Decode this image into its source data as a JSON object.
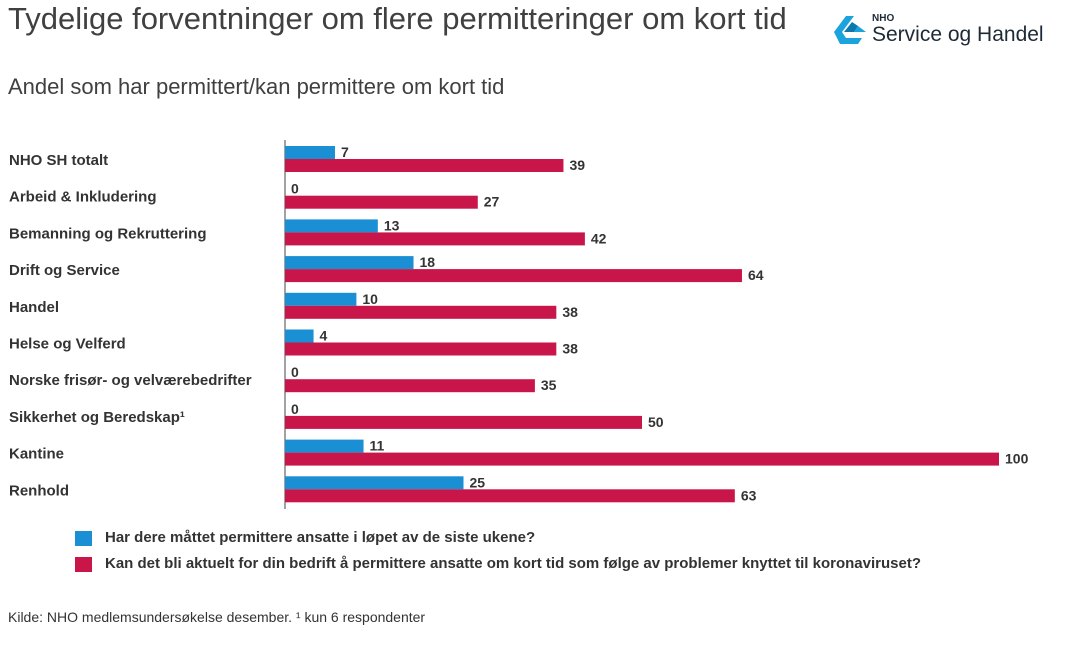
{
  "header": {
    "title": "Tydelige forventninger om flere permitteringer om kort tid",
    "subtitle": "Andel som har permittert/kan permittere om kort tid"
  },
  "logo": {
    "small_text": "NHO",
    "main_text": "Service og Handel",
    "color": "#1aa3dc"
  },
  "chart_data": {
    "type": "bar",
    "orientation": "horizontal",
    "categories": [
      "NHO SH totalt",
      "Arbeid & Inkludering",
      "Bemanning og Rekruttering",
      "Drift og Service",
      "Handel",
      "Helse og Velferd",
      "Norske frisør- og velværebedrifter",
      "Sikkerhet og Beredskap¹",
      "Kantine",
      "Renhold"
    ],
    "series": [
      {
        "name": "Har dere måttet permittere ansatte i løpet av de siste ukene?",
        "color": "#1a8fd4",
        "values": [
          7,
          0,
          13,
          18,
          10,
          4,
          0,
          0,
          11,
          25
        ]
      },
      {
        "name": "Kan det bli aktuelt for din bedrift å permittere ansatte om kort tid som følge av problemer knyttet til koronaviruset?",
        "color": "#c8164a",
        "values": [
          39,
          27,
          42,
          64,
          38,
          38,
          35,
          50,
          100,
          63
        ]
      }
    ],
    "xlim": [
      0,
      100
    ],
    "grid": false,
    "data_labels": true,
    "legend_position": "bottom"
  },
  "source": "Kilde: NHO medlemsundersøkelse desember. ¹ kun 6 respondenter"
}
